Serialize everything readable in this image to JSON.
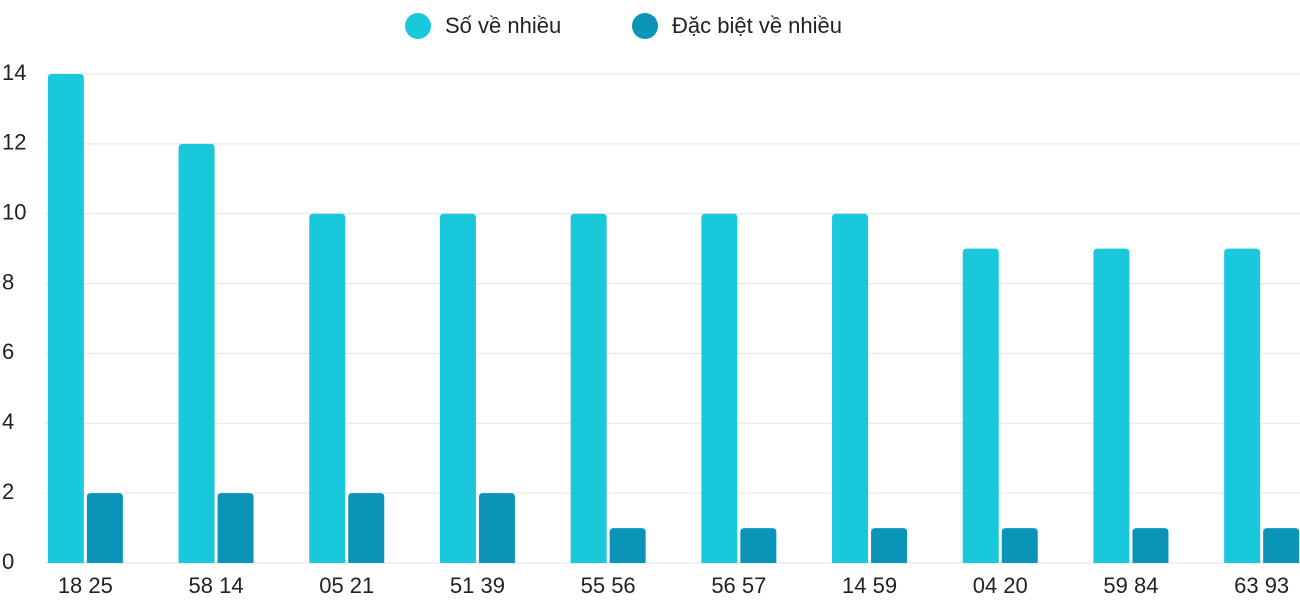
{
  "chart_data": {
    "type": "bar",
    "categories": [
      "18 25",
      "58 14",
      "05 21",
      "51 39",
      "55 56",
      "56 57",
      "14 59",
      "04 20",
      "59 84",
      "63 93"
    ],
    "series": [
      {
        "name": "Số về nhiều",
        "color": "#1ac8db",
        "values": [
          14,
          12,
          10,
          10,
          10,
          10,
          10,
          9,
          9,
          9
        ]
      },
      {
        "name": "Đặc biệt về nhiều",
        "color": "#0a94b7",
        "values": [
          2,
          2,
          2,
          2,
          1,
          1,
          1,
          1,
          1,
          1
        ]
      }
    ],
    "ylim": [
      0,
      14
    ],
    "yticks": [
      0,
      2,
      4,
      6,
      8,
      10,
      12,
      14
    ],
    "grid": true,
    "legend": "top"
  }
}
